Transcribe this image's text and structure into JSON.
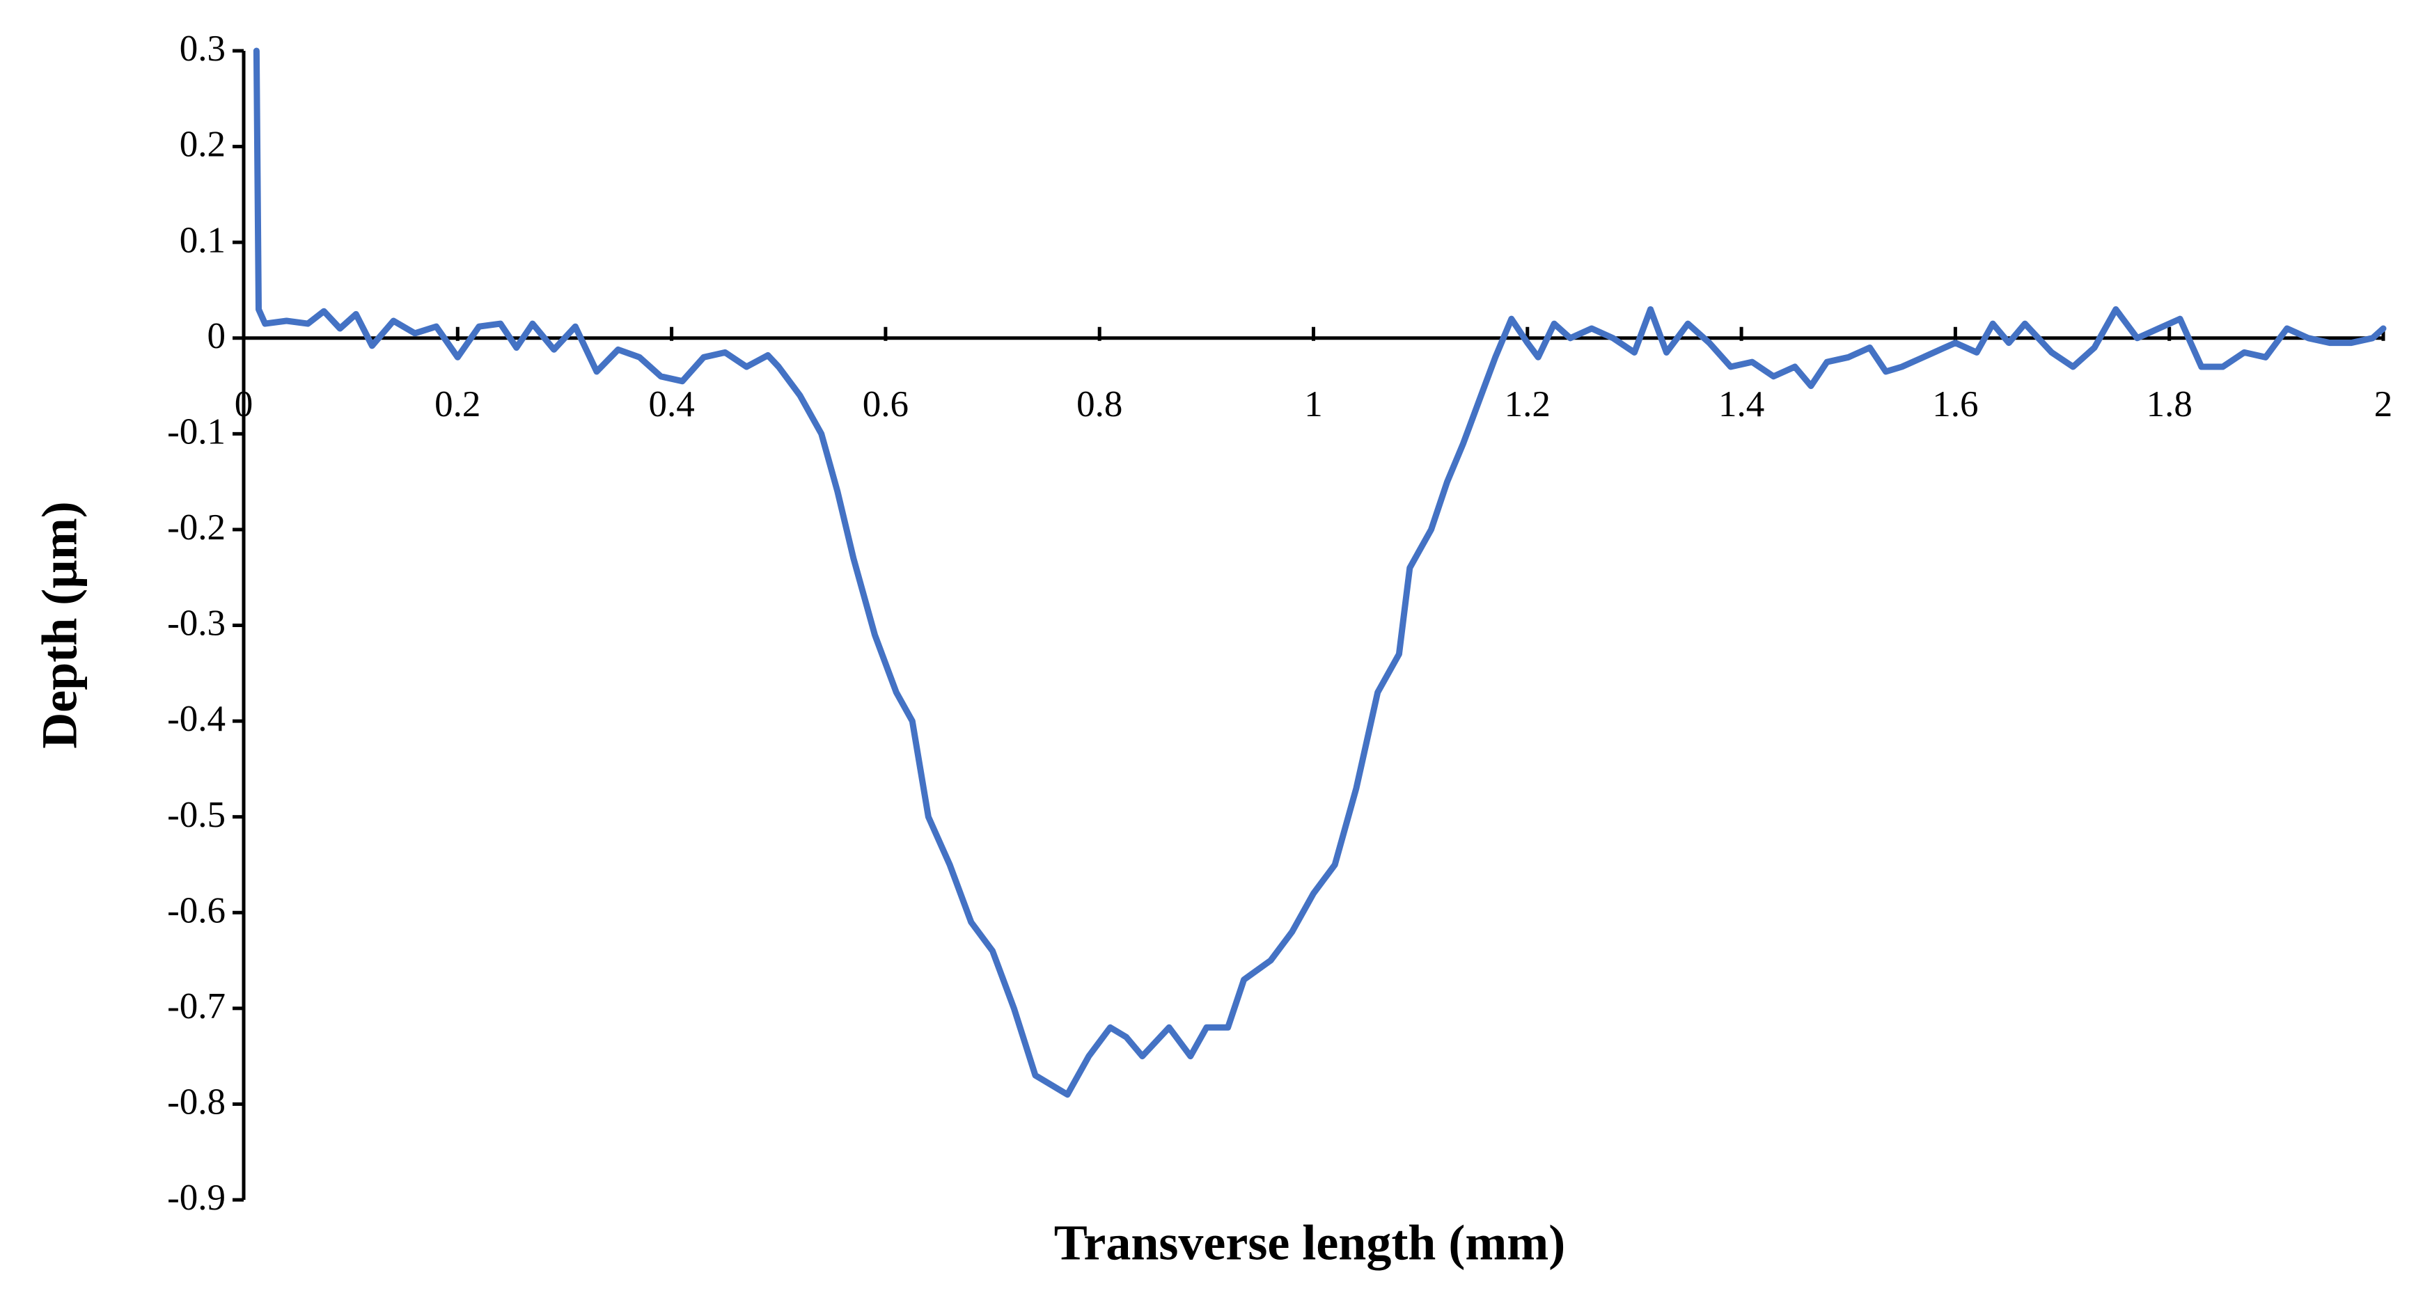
{
  "chart_data": {
    "type": "line",
    "x_label": "Transverse length (mm)",
    "y_label": "Depth (µm)",
    "color": "#4472c4",
    "xlim": [
      0,
      2
    ],
    "xticks": [
      0,
      0.2,
      0.4,
      0.6,
      0.8,
      1,
      1.2,
      1.4,
      1.6,
      1.8,
      2
    ],
    "ylim": [
      -0.9,
      0.3
    ],
    "yticks": [
      0.3,
      0.2,
      0.1,
      0,
      -0.1,
      -0.2,
      -0.3,
      -0.4,
      -0.5,
      -0.6,
      -0.7,
      -0.8,
      -0.9
    ],
    "x": [
      0.012,
      0.014,
      0.02,
      0.04,
      0.06,
      0.075,
      0.09,
      0.105,
      0.12,
      0.14,
      0.16,
      0.18,
      0.2,
      0.22,
      0.24,
      0.255,
      0.27,
      0.29,
      0.31,
      0.33,
      0.35,
      0.37,
      0.39,
      0.41,
      0.43,
      0.45,
      0.47,
      0.49,
      0.5,
      0.52,
      0.54,
      0.555,
      0.57,
      0.59,
      0.61,
      0.625,
      0.64,
      0.66,
      0.68,
      0.7,
      0.72,
      0.74,
      0.77,
      0.79,
      0.81,
      0.825,
      0.84,
      0.865,
      0.885,
      0.9,
      0.92,
      0.935,
      0.96,
      0.98,
      1.0,
      1.02,
      1.04,
      1.06,
      1.08,
      1.09,
      1.11,
      1.125,
      1.14,
      1.16,
      1.17,
      1.185,
      1.2,
      1.21,
      1.225,
      1.24,
      1.26,
      1.28,
      1.3,
      1.315,
      1.33,
      1.35,
      1.37,
      1.39,
      1.41,
      1.43,
      1.45,
      1.465,
      1.48,
      1.5,
      1.52,
      1.535,
      1.55,
      1.57,
      1.6,
      1.62,
      1.635,
      1.65,
      1.665,
      1.69,
      1.71,
      1.73,
      1.75,
      1.77,
      1.79,
      1.81,
      1.83,
      1.85,
      1.87,
      1.89,
      1.91,
      1.93,
      1.95,
      1.97,
      1.99,
      2.0
    ],
    "values": [
      0.3,
      0.03,
      0.015,
      0.018,
      0.015,
      0.028,
      0.01,
      0.025,
      -0.008,
      0.018,
      0.005,
      0.012,
      -0.02,
      0.012,
      0.015,
      -0.01,
      0.015,
      -0.012,
      0.012,
      -0.035,
      -0.012,
      -0.02,
      -0.04,
      -0.045,
      -0.02,
      -0.015,
      -0.03,
      -0.018,
      -0.03,
      -0.06,
      -0.1,
      -0.16,
      -0.23,
      -0.31,
      -0.37,
      -0.4,
      -0.5,
      -0.55,
      -0.61,
      -0.64,
      -0.7,
      -0.77,
      -0.79,
      -0.75,
      -0.72,
      -0.73,
      -0.75,
      -0.72,
      -0.75,
      -0.72,
      -0.72,
      -0.67,
      -0.65,
      -0.62,
      -0.58,
      -0.55,
      -0.47,
      -0.37,
      -0.33,
      -0.24,
      -0.2,
      -0.15,
      -0.11,
      -0.05,
      -0.02,
      0.02,
      -0.005,
      -0.02,
      0.015,
      0.0,
      0.01,
      0.0,
      -0.015,
      0.03,
      -0.015,
      0.015,
      -0.005,
      -0.03,
      -0.025,
      -0.04,
      -0.03,
      -0.05,
      -0.025,
      -0.02,
      -0.01,
      -0.035,
      -0.03,
      -0.02,
      -0.005,
      -0.015,
      0.015,
      -0.005,
      0.015,
      -0.015,
      -0.03,
      -0.01,
      0.03,
      0.0,
      0.01,
      0.02,
      -0.03,
      -0.03,
      -0.015,
      -0.02,
      0.01,
      0.0,
      -0.005,
      -0.005,
      0.0,
      0.01
    ]
  }
}
